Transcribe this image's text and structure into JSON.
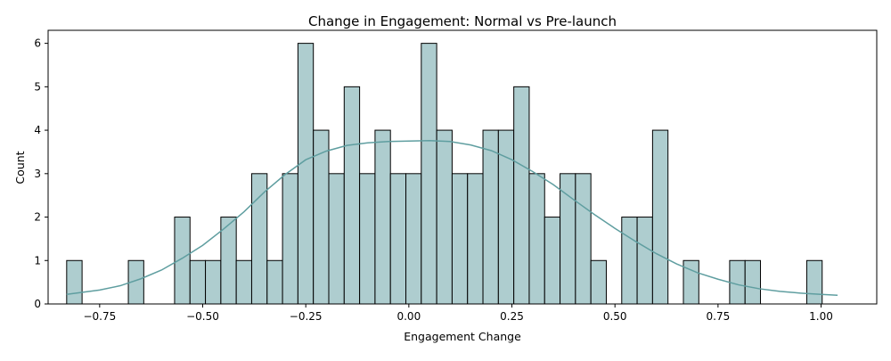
{
  "chart_data": {
    "type": "bar",
    "subtype": "histogram_with_kde",
    "title": "Change in Engagement: Normal vs Pre-launch",
    "xlabel": "Engagement Change",
    "ylabel": "Count",
    "xlim": [
      -0.875,
      1.135
    ],
    "ylim": [
      0,
      6.3
    ],
    "xticks": [
      -0.75,
      -0.5,
      -0.25,
      0.0,
      0.25,
      0.5,
      0.75,
      1.0
    ],
    "xtick_labels": [
      "−0.75",
      "−0.50",
      "−0.25",
      "0.00",
      "0.25",
      "0.50",
      "0.75",
      "1.00"
    ],
    "yticks": [
      0,
      1,
      2,
      3,
      4,
      5,
      6
    ],
    "ytick_labels": [
      "0",
      "1",
      "2",
      "3",
      "4",
      "5",
      "6"
    ],
    "grid": false,
    "bar_fill": "#aecdcf",
    "bar_edge": "#000000",
    "kde_color": "#5f9ea0",
    "bin_start": -0.83,
    "bin_width": 0.0374,
    "counts": [
      1,
      0,
      0,
      0,
      1,
      0,
      0,
      2,
      1,
      1,
      2,
      1,
      3,
      1,
      3,
      6,
      4,
      3,
      5,
      3,
      4,
      3,
      3,
      6,
      4,
      3,
      3,
      4,
      4,
      5,
      3,
      2,
      3,
      3,
      1,
      0,
      2,
      2,
      4,
      0,
      1,
      0,
      0,
      1,
      1,
      0,
      0,
      0,
      1
    ],
    "kde": {
      "x": [
        -0.83,
        -0.75,
        -0.7,
        -0.65,
        -0.6,
        -0.55,
        -0.5,
        -0.45,
        -0.4,
        -0.35,
        -0.3,
        -0.25,
        -0.2,
        -0.15,
        -0.1,
        -0.05,
        0.0,
        0.05,
        0.1,
        0.15,
        0.2,
        0.25,
        0.3,
        0.35,
        0.4,
        0.45,
        0.5,
        0.55,
        0.6,
        0.65,
        0.7,
        0.75,
        0.8,
        0.85,
        0.9,
        0.95,
        1.0,
        1.04
      ],
      "y": [
        0.22,
        0.32,
        0.42,
        0.58,
        0.78,
        1.05,
        1.35,
        1.72,
        2.12,
        2.58,
        2.98,
        3.32,
        3.52,
        3.65,
        3.71,
        3.74,
        3.75,
        3.76,
        3.74,
        3.66,
        3.53,
        3.32,
        3.05,
        2.75,
        2.4,
        2.06,
        1.74,
        1.44,
        1.16,
        0.92,
        0.72,
        0.57,
        0.44,
        0.35,
        0.29,
        0.25,
        0.22,
        0.2
      ]
    }
  }
}
